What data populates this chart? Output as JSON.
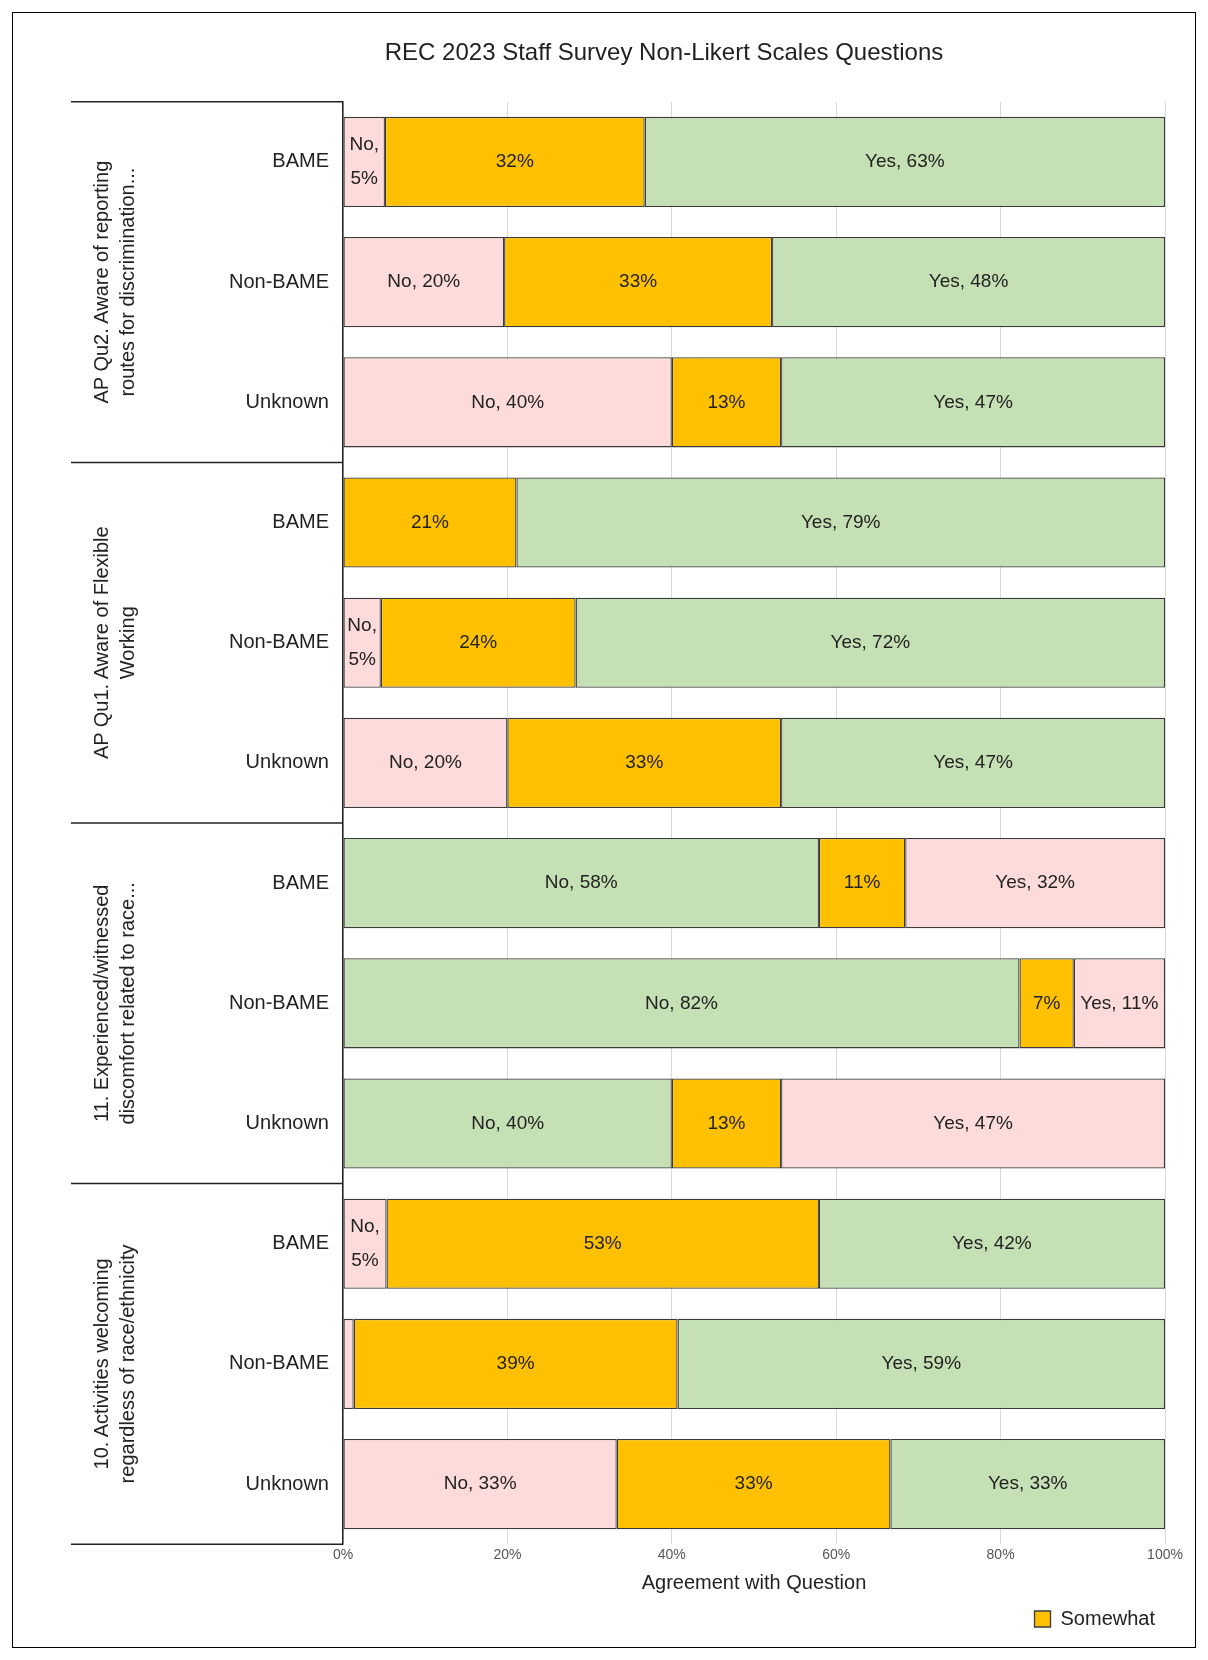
{
  "chart_data": {
    "type": "bar",
    "orientation": "horizontal",
    "stacked": true,
    "title": "REC 2023 Staff Survey Non-Likert Scales Questions",
    "xlabel": "Agreement with Question",
    "categories": [
      "BAME",
      "Non-BAME",
      "Unknown",
      "BAME",
      "Non-BAME",
      "Unknown",
      "BAME",
      "Non-BAME",
      "Unknown",
      "BAME",
      "Non-BAME",
      "Unknown"
    ],
    "annotations": [
      "AP Qu2. Aware of reporting routes for discrimination...",
      "AP Qu1. Aware of Flexible Working",
      "11. Experienced/witnessed discomfort related to race...",
      "10. Activities welcoming regardless of race/ethnicity"
    ],
    "series": [
      {
        "colors": [
          "#fddbdb",
          "#fddbdb",
          "#fddbdb",
          "#fddbdb",
          "#fddbdb",
          "#fddbdb",
          "#c5e0b4",
          "#c5e0b4",
          "#c5e0b4",
          "#fddbdb",
          "#fddbdb",
          "#fddbdb"
        ],
        "values": [
          5.1,
          19.6,
          40,
          0,
          4.6,
          20,
          57.9,
          82.3,
          40,
          5.3,
          1.3,
          33.3
        ],
        "value_labels": [
          "No, 5%",
          "No, 20%",
          "No, 40%",
          null,
          "No, 5%",
          "No, 20%",
          "No, 58%",
          "No, 82%",
          "No, 40%",
          "No, 5%",
          null,
          "No, 33%"
        ]
      },
      {
        "name": "Somewhat",
        "color": "#ffc000",
        "values": [
          31.6,
          32.6,
          13.3,
          21.1,
          23.7,
          33.3,
          10.5,
          6.6,
          13.3,
          52.6,
          39.4,
          33.3
        ],
        "value_labels": [
          "32%",
          "33%",
          "13%",
          "21%",
          "24%",
          "33%",
          "11%",
          "7%",
          "13%",
          "53%",
          "39%",
          "33%"
        ]
      },
      {
        "colors": [
          "#c5e0b4",
          "#c5e0b4",
          "#c5e0b4",
          "#c5e0b4",
          "#c5e0b4",
          "#c5e0b4",
          "#fddbdb",
          "#fddbdb",
          "#fddbdb",
          "#c5e0b4",
          "#c5e0b4",
          "#c5e0b4"
        ],
        "values": [
          63.3,
          47.8,
          46.7,
          78.9,
          71.7,
          46.7,
          31.6,
          11.1,
          46.7,
          42.1,
          59.3,
          33.4
        ],
        "value_labels": [
          "Yes, 63%",
          "Yes, 48%",
          "Yes, 47%",
          "Yes, 79%",
          "Yes, 72%",
          "Yes, 47%",
          "Yes, 32%",
          "Yes, 11%",
          "Yes, 47%",
          "Yes, 42%",
          "Yes, 59%",
          "Yes, 33%"
        ]
      }
    ],
    "xlim": [
      0,
      100
    ],
    "xticks": [
      {
        "value": 0,
        "label": "0%"
      },
      {
        "value": 20,
        "label": "20%"
      },
      {
        "value": 40,
        "label": "40%"
      },
      {
        "value": 60,
        "label": "60%"
      },
      {
        "value": 80,
        "label": "80%"
      },
      {
        "value": 100,
        "label": "100%"
      }
    ],
    "grid": "x",
    "legend": "bottom right"
  }
}
